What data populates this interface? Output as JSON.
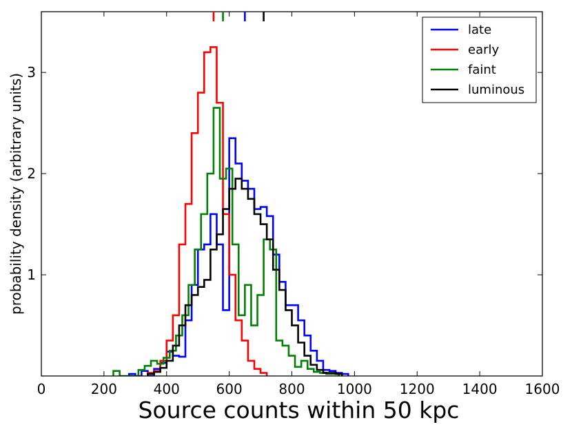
{
  "chart_data": {
    "type": "histogram-step",
    "xlabel": "Source counts within 50 kpc",
    "ylabel": "probability density (arbitrary units)",
    "xlim": [
      0,
      1600
    ],
    "ylim": [
      0,
      3.6
    ],
    "xticks": [
      "0",
      "200",
      "400",
      "600",
      "800",
      "1000",
      "1200",
      "1400",
      "1600"
    ],
    "yticks": [
      "1",
      "2",
      "3"
    ],
    "legend_position": "top-right",
    "bin_width": 20,
    "series": [
      {
        "name": "late",
        "color": "#0000ff",
        "marker": 650,
        "bins_start": 280,
        "values": [
          0.02,
          0.0,
          0.05,
          0.0,
          0.07,
          0.13,
          0.24,
          0.2,
          0.19,
          0.55,
          0.9,
          1.25,
          1.3,
          1.6,
          1.3,
          0.65,
          2.35,
          2.1,
          1.93,
          1.85,
          1.65,
          1.67,
          1.58,
          1.2,
          0.93,
          0.7,
          0.7,
          0.55,
          0.4,
          0.25,
          0.15,
          0.06,
          0.05,
          0.03,
          0.02
        ]
      },
      {
        "name": "early",
        "color": "#ff0000",
        "marker": 550,
        "bins_start": 340,
        "values": [
          0.03,
          0.05,
          0.15,
          0.35,
          0.6,
          1.3,
          1.7,
          2.4,
          2.8,
          3.2,
          3.25,
          2.7,
          1.6,
          1.0,
          0.55,
          0.35,
          0.15,
          0.07,
          0.03
        ]
      },
      {
        "name": "faint",
        "color": "#008000",
        "marker": 580,
        "bins_start": 230,
        "values": [
          0.05,
          0.0,
          0.0,
          0.0,
          0.06,
          0.1,
          0.15,
          0.12,
          0.18,
          0.25,
          0.4,
          0.6,
          0.9,
          1.25,
          1.6,
          2.0,
          2.65,
          1.95,
          2.05,
          1.3,
          0.6,
          0.9,
          0.5,
          0.8,
          1.35,
          1.25,
          0.35,
          0.3,
          0.2,
          0.09,
          0.15,
          0.07,
          0.04,
          0.03,
          0.02,
          0.02
        ]
      },
      {
        "name": "luminous",
        "color": "#000000",
        "marker": 710,
        "bins_start": 340,
        "values": [
          0.02,
          0.04,
          0.08,
          0.15,
          0.3,
          0.5,
          0.7,
          0.8,
          0.88,
          0.95,
          1.25,
          1.4,
          1.65,
          1.85,
          1.95,
          1.85,
          1.75,
          1.6,
          1.5,
          1.35,
          1.05,
          0.85,
          0.65,
          0.5,
          0.33,
          0.2,
          0.11,
          0.06,
          0.03,
          0.03,
          0.02
        ]
      }
    ]
  }
}
